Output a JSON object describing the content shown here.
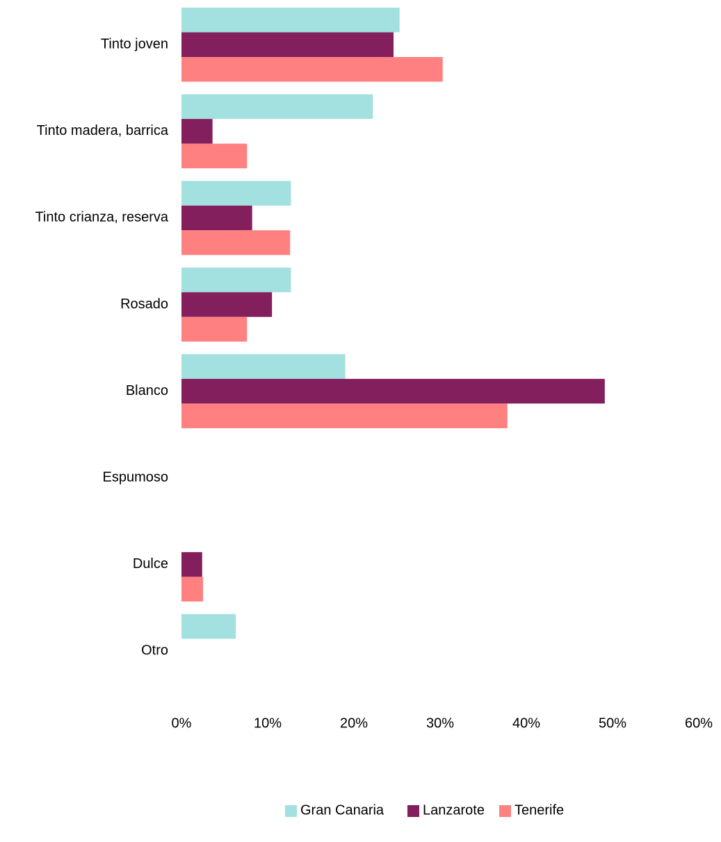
{
  "chart_data": {
    "type": "bar",
    "orientation": "horizontal",
    "categories": [
      "Tinto joven",
      "Tinto madera, barrica",
      "Tinto crianza, reserva",
      "Rosado",
      "Blanco",
      "Espumoso",
      "Dulce",
      "Otro"
    ],
    "series": [
      {
        "name": "Gran Canaria",
        "color": "#a3e0e0",
        "values": [
          25.3,
          22.2,
          12.7,
          12.7,
          19.0,
          0,
          0,
          6.3
        ]
      },
      {
        "name": "Lanzarote",
        "color": "#821f5c",
        "values": [
          24.6,
          3.6,
          8.2,
          10.5,
          49.1,
          0,
          2.4,
          0
        ]
      },
      {
        "name": "Tenerife",
        "color": "#ff8080",
        "values": [
          30.3,
          7.6,
          12.6,
          7.6,
          37.8,
          0,
          2.5,
          0
        ]
      }
    ],
    "xlim": [
      0,
      60
    ],
    "xticks": [
      "0%",
      "10%",
      "20%",
      "30%",
      "40%",
      "50%",
      "60%"
    ],
    "title": "",
    "xlabel": "",
    "ylabel": "",
    "grid": false,
    "legend_position": "bottom"
  }
}
